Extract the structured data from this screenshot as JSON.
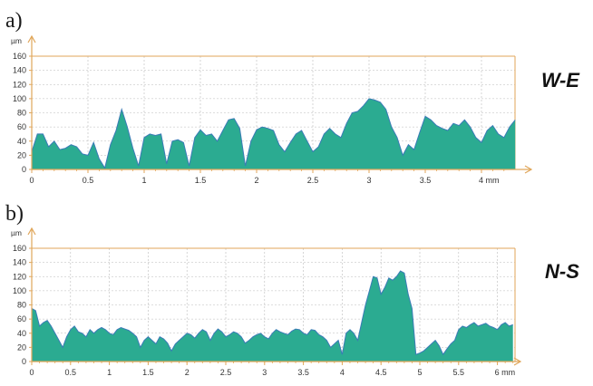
{
  "chart_data": [
    {
      "type": "area",
      "panel_label": "a)",
      "profile_name": "W-E",
      "y_unit": "µm",
      "x_unit": "mm",
      "xlim": [
        0,
        4.3
      ],
      "ylim": [
        0,
        160
      ],
      "y_ticks": [
        0,
        20,
        40,
        60,
        80,
        100,
        120,
        140,
        160
      ],
      "x_ticks": [
        0,
        0.5,
        1,
        1.5,
        2,
        2.5,
        3,
        3.5,
        4
      ],
      "grid": true,
      "colors": {
        "fill": "#2bab91",
        "outline": "#3a7bb6",
        "axis": "#e0a65a",
        "grid": "#bbbbbb"
      },
      "x": [
        0,
        0.05,
        0.1,
        0.15,
        0.2,
        0.25,
        0.3,
        0.35,
        0.4,
        0.45,
        0.5,
        0.55,
        0.6,
        0.65,
        0.7,
        0.75,
        0.8,
        0.85,
        0.9,
        0.95,
        1.0,
        1.05,
        1.1,
        1.15,
        1.2,
        1.25,
        1.3,
        1.35,
        1.4,
        1.45,
        1.5,
        1.55,
        1.6,
        1.65,
        1.7,
        1.75,
        1.8,
        1.85,
        1.9,
        1.95,
        2.0,
        2.05,
        2.1,
        2.15,
        2.2,
        2.25,
        2.3,
        2.35,
        2.4,
        2.45,
        2.5,
        2.55,
        2.6,
        2.65,
        2.7,
        2.75,
        2.8,
        2.85,
        2.9,
        2.95,
        3.0,
        3.05,
        3.1,
        3.15,
        3.2,
        3.25,
        3.3,
        3.35,
        3.4,
        3.45,
        3.5,
        3.55,
        3.6,
        3.65,
        3.7,
        3.75,
        3.8,
        3.85,
        3.9,
        3.95,
        4.0,
        4.05,
        4.1,
        4.15,
        4.2,
        4.25,
        4.3
      ],
      "y": [
        25,
        50,
        50,
        32,
        40,
        28,
        30,
        35,
        32,
        22,
        20,
        38,
        15,
        2,
        35,
        55,
        85,
        60,
        30,
        5,
        45,
        50,
        48,
        50,
        8,
        40,
        42,
        38,
        5,
        45,
        56,
        48,
        50,
        40,
        55,
        70,
        72,
        58,
        5,
        40,
        56,
        60,
        58,
        55,
        35,
        25,
        38,
        50,
        55,
        40,
        25,
        32,
        50,
        58,
        50,
        45,
        65,
        80,
        82,
        90,
        100,
        98,
        95,
        85,
        60,
        45,
        20,
        35,
        28,
        52,
        75,
        70,
        62,
        58,
        55,
        65,
        62,
        70,
        60,
        45,
        38,
        55,
        62,
        50,
        45,
        60,
        70
      ]
    },
    {
      "type": "area",
      "panel_label": "b)",
      "profile_name": "N-S",
      "y_unit": "µm",
      "x_unit": "mm",
      "xlim": [
        0,
        6.2
      ],
      "ylim": [
        0,
        160
      ],
      "y_ticks": [
        0,
        20,
        40,
        60,
        80,
        100,
        120,
        140,
        160
      ],
      "x_ticks": [
        0,
        0.5,
        1,
        1.5,
        2,
        2.5,
        3,
        3.5,
        4,
        4.5,
        5,
        5.5,
        6
      ],
      "grid": true,
      "colors": {
        "fill": "#2bab91",
        "outline": "#3a7bb6",
        "axis": "#e0a65a",
        "grid": "#bbbbbb"
      },
      "x": [
        0,
        0.05,
        0.1,
        0.15,
        0.2,
        0.25,
        0.3,
        0.35,
        0.4,
        0.45,
        0.5,
        0.55,
        0.6,
        0.65,
        0.7,
        0.75,
        0.8,
        0.85,
        0.9,
        0.95,
        1.0,
        1.05,
        1.1,
        1.15,
        1.2,
        1.25,
        1.3,
        1.35,
        1.4,
        1.45,
        1.5,
        1.55,
        1.6,
        1.65,
        1.7,
        1.75,
        1.8,
        1.85,
        1.9,
        1.95,
        2.0,
        2.05,
        2.1,
        2.15,
        2.2,
        2.25,
        2.3,
        2.35,
        2.4,
        2.45,
        2.5,
        2.55,
        2.6,
        2.65,
        2.7,
        2.75,
        2.8,
        2.85,
        2.9,
        2.95,
        3.0,
        3.05,
        3.1,
        3.15,
        3.2,
        3.25,
        3.3,
        3.35,
        3.4,
        3.45,
        3.5,
        3.55,
        3.6,
        3.65,
        3.7,
        3.75,
        3.8,
        3.85,
        3.9,
        3.95,
        4.0,
        4.05,
        4.1,
        4.15,
        4.2,
        4.25,
        4.3,
        4.35,
        4.4,
        4.45,
        4.5,
        4.55,
        4.6,
        4.65,
        4.7,
        4.75,
        4.8,
        4.85,
        4.9,
        4.95,
        5.0,
        5.05,
        5.1,
        5.15,
        5.2,
        5.25,
        5.3,
        5.35,
        5.4,
        5.45,
        5.5,
        5.55,
        5.6,
        5.65,
        5.7,
        5.75,
        5.8,
        5.85,
        5.9,
        5.95,
        6.0,
        6.05,
        6.1,
        6.15,
        6.2
      ],
      "y": [
        75,
        72,
        50,
        55,
        58,
        50,
        40,
        30,
        20,
        35,
        45,
        50,
        42,
        40,
        35,
        45,
        40,
        45,
        48,
        45,
        40,
        38,
        45,
        48,
        46,
        44,
        40,
        35,
        20,
        30,
        35,
        30,
        25,
        35,
        32,
        26,
        15,
        25,
        30,
        35,
        40,
        38,
        33,
        40,
        45,
        42,
        30,
        40,
        46,
        42,
        35,
        38,
        42,
        40,
        35,
        26,
        30,
        35,
        38,
        40,
        35,
        32,
        40,
        45,
        42,
        40,
        38,
        43,
        46,
        45,
        40,
        38,
        45,
        44,
        38,
        35,
        30,
        20,
        25,
        30,
        10,
        40,
        45,
        40,
        30,
        55,
        80,
        100,
        120,
        118,
        95,
        105,
        118,
        115,
        120,
        128,
        125,
        95,
        75,
        10,
        12,
        15,
        20,
        25,
        30,
        22,
        10,
        18,
        25,
        30,
        45,
        50,
        48,
        52,
        55,
        50,
        52,
        54,
        50,
        48,
        45,
        52,
        55,
        50,
        52
      ]
    }
  ]
}
